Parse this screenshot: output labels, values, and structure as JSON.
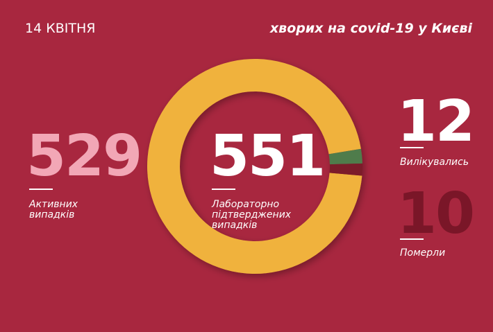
{
  "chart_data": {
    "type": "pie",
    "title": "14 КВІТНЯ",
    "subtitle": "хворих на covid-19 у Києві",
    "categories": [
      "Активних\nвипадків",
      "Вилікувались",
      "Померли"
    ],
    "values": [
      529,
      12,
      10
    ],
    "colors": [
      "#f0b23c",
      "#4f7b4c",
      "#7b1a2c"
    ],
    "total": 551,
    "total_label": "Лабораторно\nпідтверджених\nвипадків"
  }
}
